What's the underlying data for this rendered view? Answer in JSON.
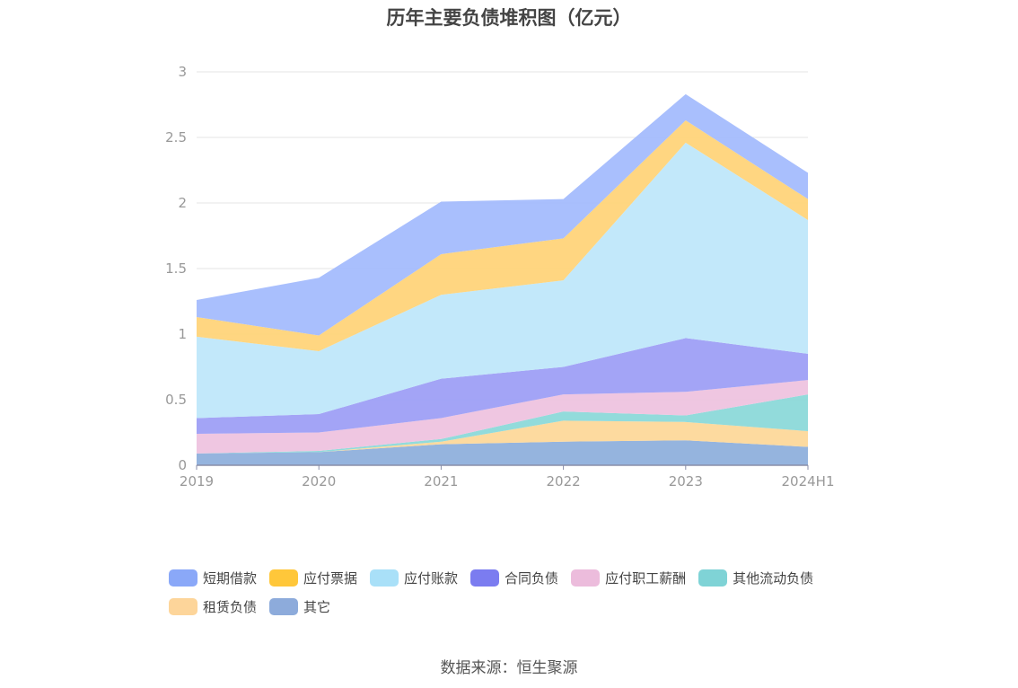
{
  "source_text": "数据来源：恒生聚源",
  "chart_data": {
    "type": "area",
    "stacked": true,
    "title": "历年主要负债堆积图（亿元）",
    "categories": [
      "2019",
      "2020",
      "2021",
      "2022",
      "2023",
      "2024H1"
    ],
    "ylim": [
      0,
      3
    ],
    "yticks": [
      "0",
      "0.5",
      "1",
      "1.5",
      "2",
      "2.5",
      "3"
    ],
    "grid": true,
    "legend_position": "bottom",
    "series": [
      {
        "name": "其它",
        "color": "#8fb0dc",
        "values": [
          0.09,
          0.1,
          0.16,
          0.18,
          0.19,
          0.14
        ]
      },
      {
        "name": "租赁负债",
        "color": "#fdd89a",
        "values": [
          0.0,
          0.0,
          0.02,
          0.16,
          0.14,
          0.12
        ]
      },
      {
        "name": "其他流动负债",
        "color": "#8cd9d9",
        "values": [
          0.0,
          0.01,
          0.02,
          0.07,
          0.05,
          0.28
        ]
      },
      {
        "name": "应付职工薪酬",
        "color": "#eec3df",
        "values": [
          0.15,
          0.14,
          0.16,
          0.13,
          0.18,
          0.11
        ]
      },
      {
        "name": "合同负债",
        "color": "#9e9ff5",
        "values": [
          0.12,
          0.14,
          0.3,
          0.21,
          0.41,
          0.2
        ]
      },
      {
        "name": "应付账款",
        "color": "#bfe7fa",
        "values": [
          0.62,
          0.48,
          0.64,
          0.66,
          1.49,
          1.02
        ]
      },
      {
        "name": "应付票据",
        "color": "#ffd47a",
        "values": [
          0.15,
          0.12,
          0.31,
          0.32,
          0.17,
          0.16
        ]
      },
      {
        "name": "短期借款",
        "color": "#a4bcfd",
        "values": [
          0.13,
          0.44,
          0.4,
          0.3,
          0.2,
          0.2
        ]
      }
    ],
    "legend": [
      {
        "name": "短期借款",
        "color": "#8aa8f8"
      },
      {
        "name": "应付票据",
        "color": "#ffc73a"
      },
      {
        "name": "应付账款",
        "color": "#a9e0f8"
      },
      {
        "name": "合同负债",
        "color": "#7b7cf0"
      },
      {
        "name": "应付职工薪酬",
        "color": "#ecbcdc"
      },
      {
        "name": "其他流动负债",
        "color": "#7fd3d6"
      },
      {
        "name": "租赁负债",
        "color": "#fdd59a"
      },
      {
        "name": "其它",
        "color": "#8dabdb"
      }
    ]
  }
}
